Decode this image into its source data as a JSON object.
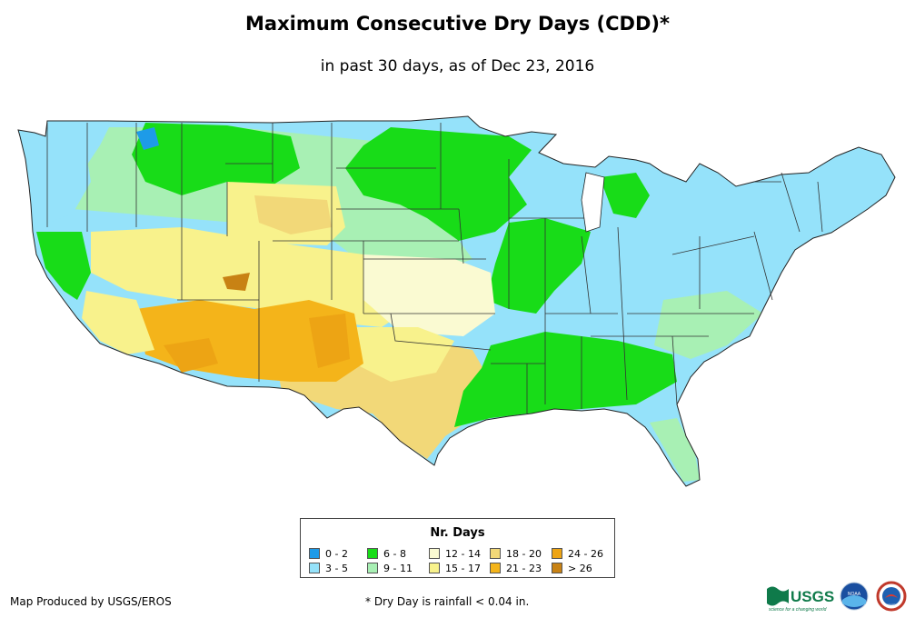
{
  "title": "Maximum Consecutive Dry Days (CDD)*",
  "subtitle": "in past 30 days, as of Dec 23, 2016",
  "legend": {
    "title": "Nr. Days",
    "items": [
      {
        "label": "0 - 2",
        "color": "#1e9be8"
      },
      {
        "label": "3 - 5",
        "color": "#95e2fa"
      },
      {
        "label": "6 - 8",
        "color": "#18dc18"
      },
      {
        "label": "9 - 11",
        "color": "#a8f0b4"
      },
      {
        "label": "12 - 14",
        "color": "#fafad2"
      },
      {
        "label": "15 - 17",
        "color": "#f8f28c"
      },
      {
        "label": "18 - 20",
        "color": "#f2d878"
      },
      {
        "label": "21 - 23",
        "color": "#f4b41a"
      },
      {
        "label": "24 - 26",
        "color": "#eda414"
      },
      {
        "label": "> 26",
        "color": "#c88214"
      }
    ]
  },
  "credit": "Map Produced by USGS/EROS",
  "footnote": "* Dry Day is rainfall < 0.04 in.",
  "logos": {
    "usgs": "USGS",
    "usgs_tagline": "science for a changing world",
    "noaa": "NOAA",
    "nws": "NWS"
  }
}
